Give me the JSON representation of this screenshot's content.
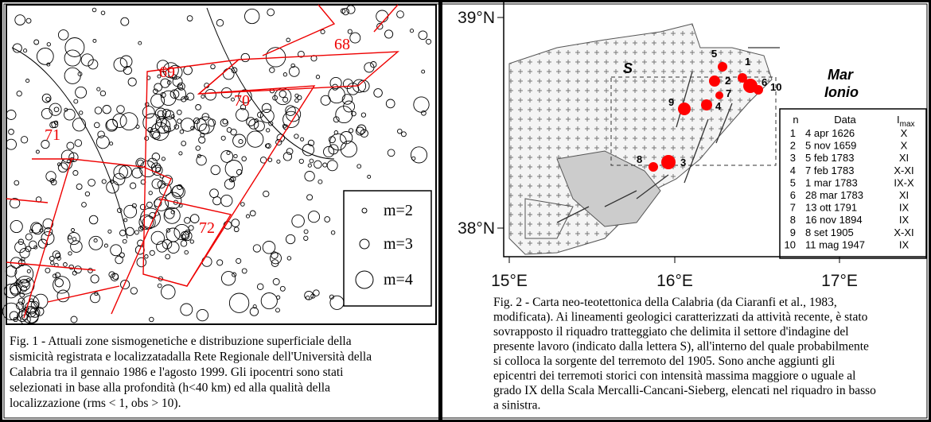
{
  "fig1": {
    "zones": [
      "68",
      "69",
      "70",
      "71",
      "72"
    ],
    "legend": [
      "m=2",
      "m=3",
      "m=4"
    ],
    "caption": [
      "Fig. 1 - Attuali zone sismogenetiche e distribuzione superficiale della",
      "sismicità registrata e localizzatadalla Rete Regionale dell'Università della",
      "Calabria tra il gennaio 1986 e l'agosto 1999. Gli ipocentri sono stati",
      "selezionati in base alla profondità (h<40 km) ed alla qualità della",
      "localizzazione (rms < 1, obs > 10)."
    ]
  },
  "fig2": {
    "lat_labels": [
      "39°N",
      "38°N"
    ],
    "lon_labels": [
      "15°E",
      "16°E",
      "17°E"
    ],
    "sector": "S",
    "sea": [
      "Mar",
      "Ionio"
    ],
    "points": [
      "1",
      "2",
      "3",
      "4",
      "5",
      "6",
      "7",
      "8",
      "9",
      "10"
    ],
    "table": {
      "header": [
        "n",
        "Data"
      ],
      "imax": {
        "base": "I",
        "sub": "max"
      },
      "rows": [
        [
          "1",
          "4 apr 1626",
          "X"
        ],
        [
          "2",
          "5 nov 1659",
          "X"
        ],
        [
          "3",
          "5 feb 1783",
          "XI"
        ],
        [
          "4",
          "7 feb 1783",
          "X-XI"
        ],
        [
          "5",
          "1 mar 1783",
          "IX-X"
        ],
        [
          "6",
          "28 mar 1783",
          "XI"
        ],
        [
          "7",
          "13 ott 1791",
          "IX"
        ],
        [
          "8",
          "16 nov 1894",
          "IX"
        ],
        [
          "9",
          "8 set 1905",
          "X-XI"
        ],
        [
          "10",
          "11 mag 1947",
          "IX"
        ]
      ]
    },
    "caption": [
      "Fig. 2 - Carta neo-teotettonica della Calabria (da Ciaranfi et al., 1983,",
      "modificata). Ai lineamenti geologici caratterizzati da attività recente, è stato",
      "sovrapposto il riquadro tratteggiato che delimita il settore d'indagine del",
      "presente lavoro (indicato dalla lettera S), all'interno del quale probabilmente",
      "si colloca la sorgente del terremoto del 1905. Sono anche aggiunti gli",
      "epicentri dei terremoti storici con intensità massima maggiore o uguale al",
      "grado IX della Scala Mercalli-Cancani-Sieberg, elencati nel riquadro in basso",
      "a sinistra."
    ]
  }
}
